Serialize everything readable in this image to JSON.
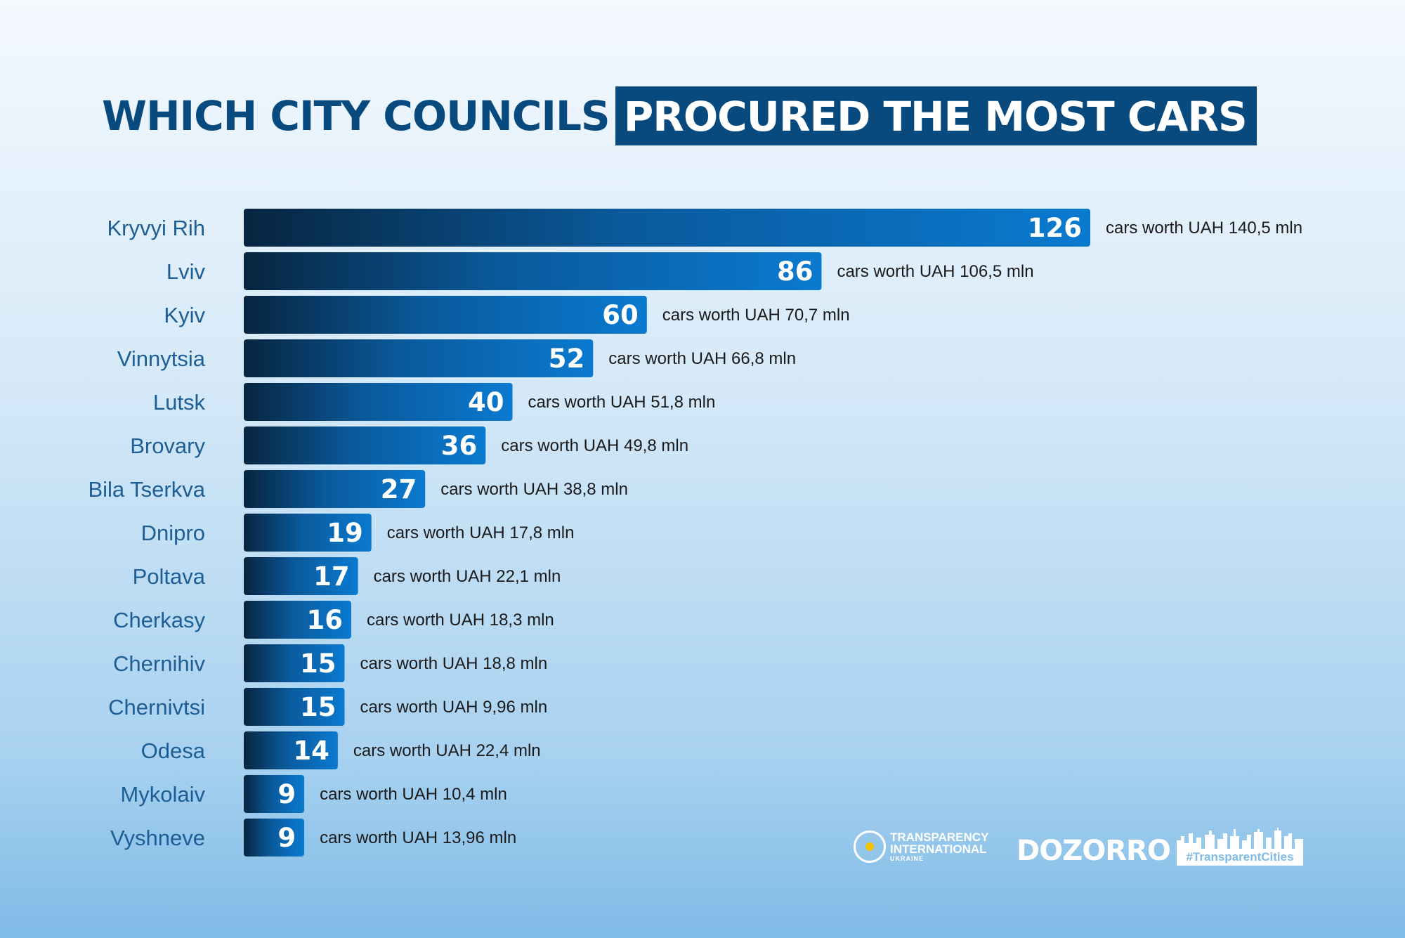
{
  "title": {
    "part1": "WHICH CITY COUNCILS",
    "part2": "PROCURED THE MOST CARS"
  },
  "chart_data": {
    "type": "bar",
    "orientation": "horizontal",
    "title": "WHICH CITY COUNCILS PROCURED THE MOST CARS",
    "categories": [
      "Kryvyi Rih",
      "Lviv",
      "Kyiv",
      "Vinnytsia",
      "Lutsk",
      "Brovary",
      "Bila Tserkva",
      "Dnipro",
      "Poltava",
      "Cherkasy",
      "Chernihiv",
      "Chernivtsi",
      "Odesa",
      "Mykolaiv",
      "Vyshneve"
    ],
    "values": [
      126,
      86,
      60,
      52,
      40,
      36,
      27,
      19,
      17,
      16,
      15,
      15,
      14,
      9,
      9
    ],
    "value_labels": [
      "126",
      "86",
      "60",
      "52",
      "40",
      "36",
      "27",
      "19",
      "17",
      "16",
      "15",
      "15",
      "14",
      "9",
      "9"
    ],
    "annotations": [
      "cars worth UAH 140,5 mln",
      "cars worth UAH 106,5 mln",
      "cars worth UAH 70,7 mln",
      "cars worth UAH 66,8 mln",
      "cars worth UAH 51,8 mln",
      "cars worth UAH 49,8 mln",
      "cars worth UAH 38,8 mln",
      "cars worth UAH 17,8 mln",
      "cars worth UAH 22,1 mln",
      "cars worth UAH 18,3 mln",
      "cars worth UAH 18,8 mln",
      "cars worth UAH 9,96  mln",
      "cars worth UAH 22,4 mln",
      "cars worth UAH 10,4 mln",
      "cars worth UAH 13,96  mln"
    ],
    "grid": false,
    "colors": {
      "bar_dark": "#072540",
      "bar_light": "#0a7ad0",
      "city_label": "#1d5e95"
    }
  },
  "logos": {
    "ti_line1": "TRANSPARENCY",
    "ti_line2": "INTERNATIONAL",
    "ti_line3": "UKRAINE",
    "dozorro": "DOZORRO",
    "transparent_cities": "#TransparentCities"
  },
  "colors": {
    "title_text": "#08497e",
    "title_box": "#08497e"
  }
}
